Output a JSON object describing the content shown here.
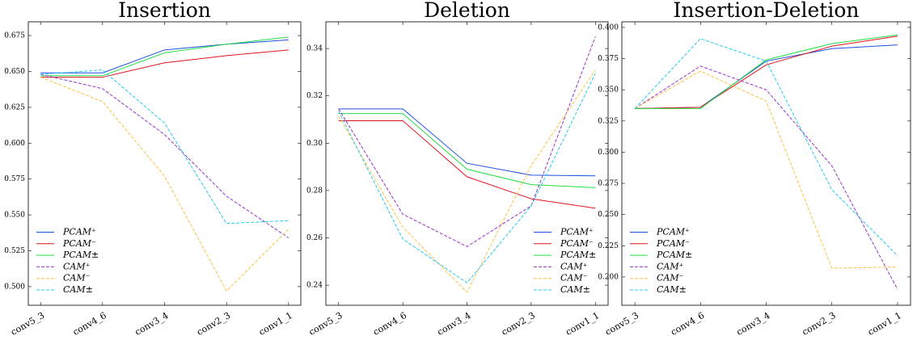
{
  "chart_data": [
    {
      "type": "line",
      "title": "Insertion",
      "legend": "lower left",
      "categories": [
        "conv5_3",
        "conv4_6",
        "conv3_4",
        "conv2_3",
        "conv1_1"
      ],
      "ylim": [
        0.487,
        0.6846
      ],
      "yticks": [
        {
          "value": 0.5,
          "label": "0.500"
        },
        0.525,
        {
          "value": 0.55,
          "label": "0.550"
        },
        0.575,
        {
          "value": 0.6,
          "label": "0.600"
        },
        0.625,
        {
          "value": 0.65,
          "label": "0.650"
        },
        0.675
      ],
      "series": [
        {
          "name": "PCAM⁺",
          "color": "#1f4fe0",
          "style": "solid",
          "values": [
            0.649,
            0.649,
            0.665,
            0.669,
            0.672
          ]
        },
        {
          "name": "PCAM⁻",
          "color": "#e0141e",
          "style": "solid",
          "values": [
            0.646,
            0.646,
            0.656,
            0.661,
            0.665
          ]
        },
        {
          "name": "PCAM±",
          "color": "#22dd44",
          "style": "solid",
          "values": [
            0.647,
            0.647,
            0.663,
            0.669,
            0.674
          ]
        },
        {
          "name": "CAM⁺",
          "color": "#9933cc",
          "style": "dashed",
          "values": [
            0.648,
            0.638,
            0.606,
            0.563,
            0.534
          ]
        },
        {
          "name": "CAM⁻",
          "color": "#ffc040",
          "style": "dashed",
          "values": [
            0.646,
            0.629,
            0.577,
            0.497,
            0.54
          ]
        },
        {
          "name": "CAM±",
          "color": "#22ccee",
          "style": "dashed",
          "values": [
            0.648,
            0.651,
            0.614,
            0.544,
            0.546
          ]
        }
      ]
    },
    {
      "type": "line",
      "title": "Deletion",
      "legend": "lower right",
      "categories": [
        "conv5_3",
        "conv4_6",
        "conv3_4",
        "conv2_3",
        "conv1_1"
      ],
      "ylim": [
        0.2315,
        0.3513
      ],
      "yticks": [
        0.24,
        0.26,
        0.28,
        {
          "value": 0.3,
          "label": "0.30"
        },
        0.32,
        0.34
      ],
      "series": [
        {
          "name": "PCAM⁺",
          "color": "#1f4fe0",
          "style": "solid",
          "values": [
            0.3145,
            0.3145,
            0.2915,
            0.2865,
            0.2862
          ]
        },
        {
          "name": "PCAM⁻",
          "color": "#e0141e",
          "style": "solid",
          "values": [
            0.3095,
            0.3095,
            0.2858,
            0.2765,
            0.2725
          ]
        },
        {
          "name": "PCAM±",
          "color": "#22dd44",
          "style": "solid",
          "values": [
            0.3125,
            0.3125,
            0.289,
            0.2825,
            0.2812
          ]
        },
        {
          "name": "CAM⁺",
          "color": "#9933cc",
          "style": "dashed",
          "values": [
            0.3145,
            0.27,
            0.2563,
            0.2735,
            0.345
          ]
        },
        {
          "name": "CAM⁻",
          "color": "#ffc040",
          "style": "dashed",
          "values": [
            0.3115,
            0.2645,
            0.237,
            0.2905,
            0.331
          ]
        },
        {
          "name": "CAM±",
          "color": "#22ccee",
          "style": "dashed",
          "values": [
            0.3135,
            0.2595,
            0.241,
            0.2735,
            0.3295
          ]
        }
      ]
    },
    {
      "type": "line",
      "title": "Insertion-Deletion",
      "legend": "lower left",
      "categories": [
        "conv5_3",
        "conv4_6",
        "conv3_4",
        "conv2_3",
        "conv1_1"
      ],
      "ylim": [
        0.1773,
        0.4045
      ],
      "yticks": [
        {
          "value": 0.2,
          "label": "0.200"
        },
        0.225,
        {
          "value": 0.25,
          "label": "0.250"
        },
        0.275,
        {
          "value": 0.3,
          "label": "0.300"
        },
        0.325,
        {
          "value": 0.35,
          "label": "0.350"
        },
        0.375,
        {
          "value": 0.4,
          "label": "0.400"
        }
      ],
      "series": [
        {
          "name": "PCAM⁺",
          "color": "#1f4fe0",
          "style": "solid",
          "values": [
            0.335,
            0.336,
            0.373,
            0.383,
            0.386
          ]
        },
        {
          "name": "PCAM⁻",
          "color": "#e0141e",
          "style": "solid",
          "values": [
            0.335,
            0.336,
            0.37,
            0.385,
            0.393
          ]
        },
        {
          "name": "PCAM±",
          "color": "#22dd44",
          "style": "solid",
          "values": [
            0.335,
            0.335,
            0.374,
            0.387,
            0.394
          ]
        },
        {
          "name": "CAM⁺",
          "color": "#9933cc",
          "style": "dashed",
          "values": [
            0.335,
            0.369,
            0.35,
            0.289,
            0.19
          ]
        },
        {
          "name": "CAM⁻",
          "color": "#ffc040",
          "style": "dashed",
          "values": [
            0.335,
            0.365,
            0.341,
            0.207,
            0.208
          ]
        },
        {
          "name": "CAM±",
          "color": "#22ccee",
          "style": "dashed",
          "values": [
            0.335,
            0.391,
            0.373,
            0.27,
            0.217
          ]
        }
      ]
    }
  ]
}
